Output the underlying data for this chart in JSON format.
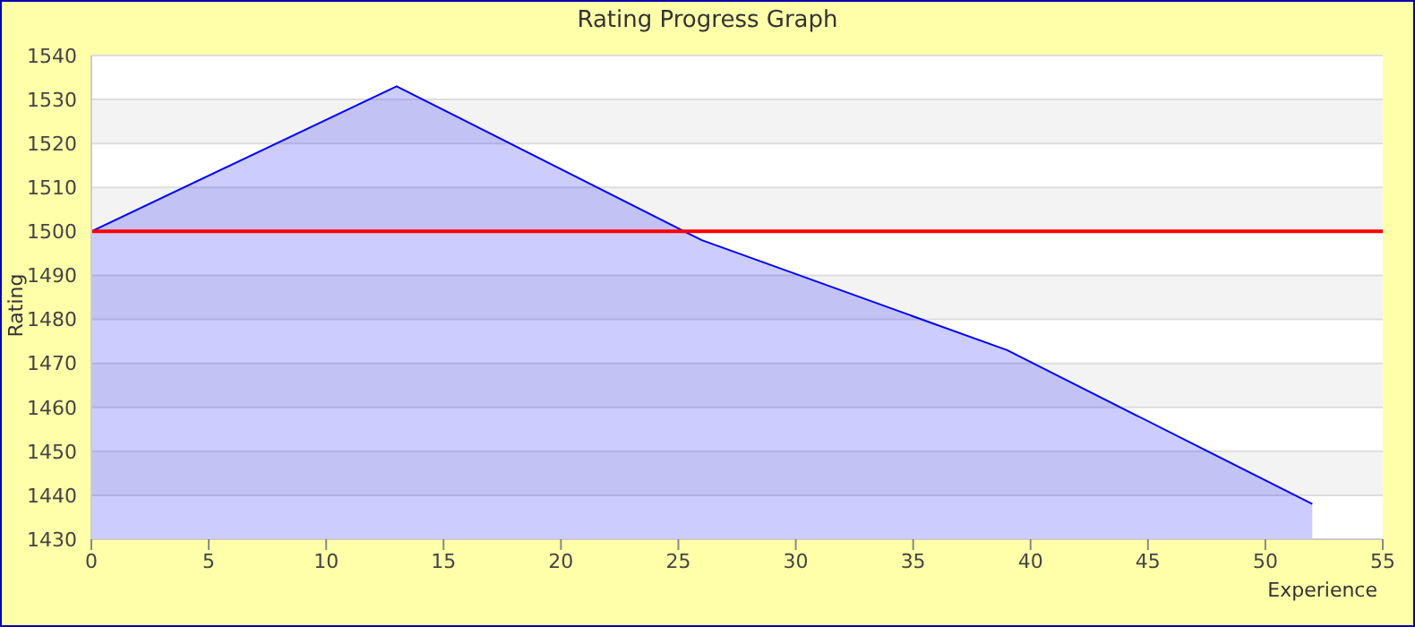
{
  "chart_data": {
    "type": "area",
    "title": "Rating Progress Graph",
    "xlabel": "Experience",
    "ylabel": "Rating",
    "x": [
      0,
      13,
      26,
      39,
      52
    ],
    "series": [
      {
        "color": "#0000ff",
        "values": [
          1500,
          1533,
          1498,
          1473,
          1438
        ]
      }
    ],
    "xlim": [
      0,
      55
    ],
    "xticks": [
      0,
      5,
      10,
      15,
      20,
      25,
      30,
      35,
      40,
      45,
      50,
      55
    ],
    "ylim": [
      1430,
      1540
    ],
    "yticks": [
      1430,
      1440,
      1450,
      1460,
      1470,
      1480,
      1490,
      1500,
      1510,
      1520,
      1530,
      1540
    ],
    "ref_lines": [
      {
        "axis": "y",
        "value": 1500,
        "color": "#ff0000"
      }
    ],
    "grid": "y",
    "legend": false,
    "marker": "none"
  }
}
